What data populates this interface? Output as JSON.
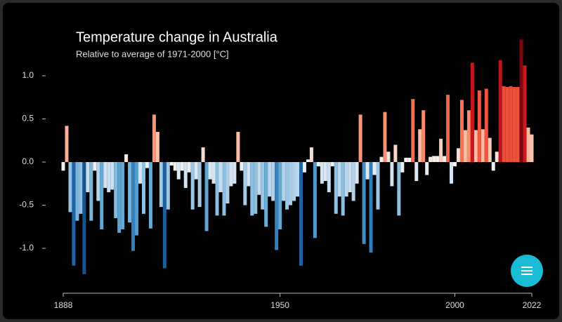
{
  "chart_data": {
    "type": "bar",
    "title": "Temperature change in Australia",
    "subtitle": "Relative to average of 1971-2000  [°C]",
    "x": [
      1888,
      1889,
      1890,
      1891,
      1892,
      1893,
      1894,
      1895,
      1896,
      1897,
      1898,
      1899,
      1900,
      1901,
      1902,
      1903,
      1904,
      1905,
      1906,
      1907,
      1908,
      1909,
      1910,
      1911,
      1912,
      1913,
      1914,
      1915,
      1916,
      1917,
      1918,
      1919,
      1920,
      1921,
      1922,
      1923,
      1924,
      1925,
      1926,
      1927,
      1928,
      1929,
      1930,
      1931,
      1932,
      1933,
      1934,
      1935,
      1936,
      1937,
      1938,
      1939,
      1940,
      1941,
      1942,
      1943,
      1944,
      1945,
      1946,
      1947,
      1948,
      1949,
      1950,
      1951,
      1952,
      1953,
      1954,
      1955,
      1956,
      1957,
      1958,
      1959,
      1960,
      1961,
      1962,
      1963,
      1964,
      1965,
      1966,
      1967,
      1968,
      1969,
      1970,
      1971,
      1972,
      1973,
      1974,
      1975,
      1976,
      1977,
      1978,
      1979,
      1980,
      1981,
      1982,
      1983,
      1984,
      1985,
      1986,
      1987,
      1988,
      1989,
      1990,
      1991,
      1992,
      1993,
      1994,
      1995,
      1996,
      1997,
      1998,
      1999,
      2000,
      2001,
      2002,
      2003,
      2004,
      2005,
      2006,
      2007,
      2008,
      2009,
      2010,
      2011,
      2012,
      2013,
      2014,
      2015,
      2016,
      2017,
      2018,
      2019,
      2020,
      2021,
      2022
    ],
    "values": [
      -0.1,
      0.42,
      -0.58,
      -1.2,
      -0.68,
      -0.6,
      -1.3,
      -0.35,
      -0.68,
      -0.1,
      -0.45,
      -0.78,
      -0.3,
      -0.35,
      -0.32,
      -0.65,
      -0.82,
      -0.78,
      0.09,
      -0.7,
      -1.03,
      -0.85,
      -0.25,
      -0.6,
      -0.07,
      -0.77,
      0.55,
      0.35,
      -0.52,
      -1.23,
      -0.55,
      -0.04,
      -0.1,
      -0.2,
      -0.1,
      -0.3,
      -0.12,
      -0.55,
      -0.2,
      -0.52,
      0.17,
      -0.8,
      -0.2,
      -0.25,
      -0.62,
      -0.35,
      -0.62,
      -0.48,
      -0.28,
      -0.25,
      0.35,
      -0.1,
      -0.5,
      -0.28,
      -0.62,
      -0.6,
      -0.38,
      -0.55,
      -0.75,
      -0.4,
      -0.45,
      -1.02,
      -0.78,
      -0.45,
      -0.55,
      -0.5,
      -0.45,
      -0.4,
      -1.2,
      -0.12,
      0.03,
      0.17,
      -0.88,
      -0.05,
      -0.25,
      -0.22,
      -0.35,
      -0.05,
      -0.6,
      -0.4,
      -0.62,
      -0.4,
      -0.35,
      -0.45,
      -0.25,
      0.55,
      -0.95,
      -0.2,
      -1.05,
      -0.15,
      -0.55,
      0.06,
      0.58,
      0.12,
      -0.28,
      0.2,
      -0.62,
      -0.12,
      0.05,
      0.05,
      0.73,
      -0.22,
      0.38,
      0.6,
      -0.15,
      0.06,
      0.07,
      0.07,
      0.27,
      0.07,
      0.78,
      -0.25,
      -0.05,
      0.16,
      0.72,
      0.37,
      0.6,
      1.15,
      0.37,
      0.83,
      0.38,
      0.85,
      0.28,
      -0.1,
      0.12,
      1.18,
      0.88,
      0.87,
      0.88,
      0.87,
      0.87,
      1.42,
      1.12,
      0.4,
      0.32
    ],
    "colors": [
      "#08306b",
      "#2171b5",
      "#6baed6",
      "#c6dbef",
      "#f7f7f7",
      "#fcbba1",
      "#fb6a4a",
      "#cb181d",
      "#67000d"
    ],
    "xlim": [
      1888,
      2022
    ],
    "xticks": [
      1888,
      1950,
      2000,
      2022
    ],
    "ylim": [
      -1.5,
      1.5
    ],
    "yticks": [
      {
        "value": 1.0,
        "label": "1.0"
      },
      0.5,
      {
        "value": 0.0,
        "label": "0.0"
      },
      -0.5,
      {
        "value": -1.0,
        "label": "-1.0"
      }
    ]
  }
}
